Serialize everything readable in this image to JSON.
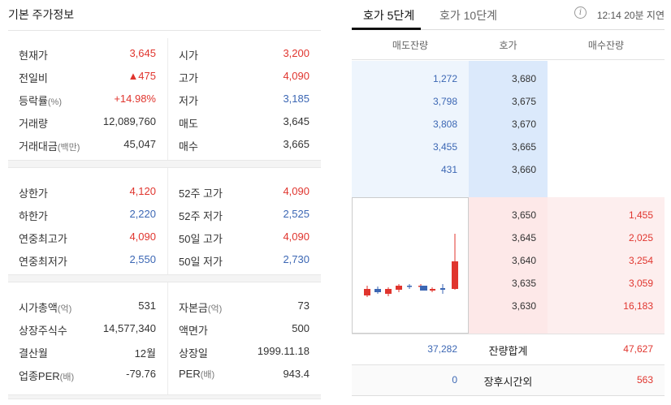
{
  "left": {
    "title": "기본 주가정보",
    "section1": [
      {
        "k1": "현재가",
        "k1_unit": "",
        "v1": "3,645",
        "v1_color": "red",
        "k2": "시가",
        "k2_unit": "",
        "v2": "3,200",
        "v2_color": "red"
      },
      {
        "k1": "전일비",
        "k1_unit": "",
        "v1": "▲475",
        "v1_color": "red",
        "k2": "고가",
        "k2_unit": "",
        "v2": "4,090",
        "v2_color": "red"
      },
      {
        "k1": "등락률",
        "k1_unit": "(%)",
        "v1": "+14.98%",
        "v1_color": "red",
        "k2": "저가",
        "k2_unit": "",
        "v2": "3,185",
        "v2_color": "blue"
      },
      {
        "k1": "거래량",
        "k1_unit": "",
        "v1": "12,089,760",
        "v1_color": "",
        "k2": "매도",
        "k2_unit": "",
        "v2": "3,645",
        "v2_color": ""
      },
      {
        "k1": "거래대금",
        "k1_unit": "(백만)",
        "v1": "45,047",
        "v1_color": "",
        "k2": "매수",
        "k2_unit": "",
        "v2": "3,665",
        "v2_color": ""
      }
    ],
    "section2": [
      {
        "k1": "상한가",
        "k1_unit": "",
        "v1": "4,120",
        "v1_color": "red",
        "k2": "52주 고가",
        "k2_unit": "",
        "v2": "4,090",
        "v2_color": "red"
      },
      {
        "k1": "하한가",
        "k1_unit": "",
        "v1": "2,220",
        "v1_color": "blue",
        "k2": "52주 저가",
        "k2_unit": "",
        "v2": "2,525",
        "v2_color": "blue"
      },
      {
        "k1": "연중최고가",
        "k1_unit": "",
        "v1": "4,090",
        "v1_color": "red",
        "k2": "50일 고가",
        "k2_unit": "",
        "v2": "4,090",
        "v2_color": "red"
      },
      {
        "k1": "연중최저가",
        "k1_unit": "",
        "v1": "2,550",
        "v1_color": "blue",
        "k2": "50일 저가",
        "k2_unit": "",
        "v2": "2,730",
        "v2_color": "blue"
      }
    ],
    "section3": [
      {
        "k1": "시가총액",
        "k1_unit": "(억)",
        "v1": "531",
        "v1_color": "",
        "k2": "자본금",
        "k2_unit": "(억)",
        "v2": "73",
        "v2_color": ""
      },
      {
        "k1": "상장주식수",
        "k1_unit": "",
        "v1": "14,577,340",
        "v1_color": "",
        "k2": "액면가",
        "k2_unit": "",
        "v2": "500",
        "v2_color": ""
      },
      {
        "k1": "결산월",
        "k1_unit": "",
        "v1": "12월",
        "v1_color": "",
        "k2": "상장일",
        "k2_unit": "",
        "v2": "1999.11.18",
        "v2_color": ""
      },
      {
        "k1": "업종PER",
        "k1_unit": "(배)",
        "v1": "-79.76",
        "v1_color": "",
        "k2": "PER",
        "k2_unit": "(배)",
        "v2": "943.4",
        "v2_color": ""
      }
    ]
  },
  "right": {
    "tabs": [
      "호가 5단계",
      "호가 10단계"
    ],
    "info_icon": "info-icon",
    "delay_text": "12:14 20분 지연",
    "headers": {
      "ask_qty": "매도잔량",
      "price": "호가",
      "bid_qty": "매수잔량"
    },
    "asks": [
      {
        "qty": "1,272",
        "price": "3,680"
      },
      {
        "qty": "3,798",
        "price": "3,675"
      },
      {
        "qty": "3,808",
        "price": "3,670"
      },
      {
        "qty": "3,455",
        "price": "3,665"
      },
      {
        "qty": "431",
        "price": "3,660"
      }
    ],
    "bids": [
      {
        "price": "3,650",
        "qty": "1,455"
      },
      {
        "price": "3,645",
        "qty": "2,025"
      },
      {
        "price": "3,640",
        "qty": "3,254"
      },
      {
        "price": "3,635",
        "qty": "3,059"
      },
      {
        "price": "3,630",
        "qty": "16,183"
      }
    ],
    "totals": {
      "ask": "37,282",
      "label": "잔량합계",
      "bid": "47,627"
    },
    "after_hours": {
      "ask": "0",
      "label": "장후시간외",
      "bid": "563"
    },
    "colors": {
      "up": "#e0352e",
      "down": "#3c67b4"
    }
  }
}
